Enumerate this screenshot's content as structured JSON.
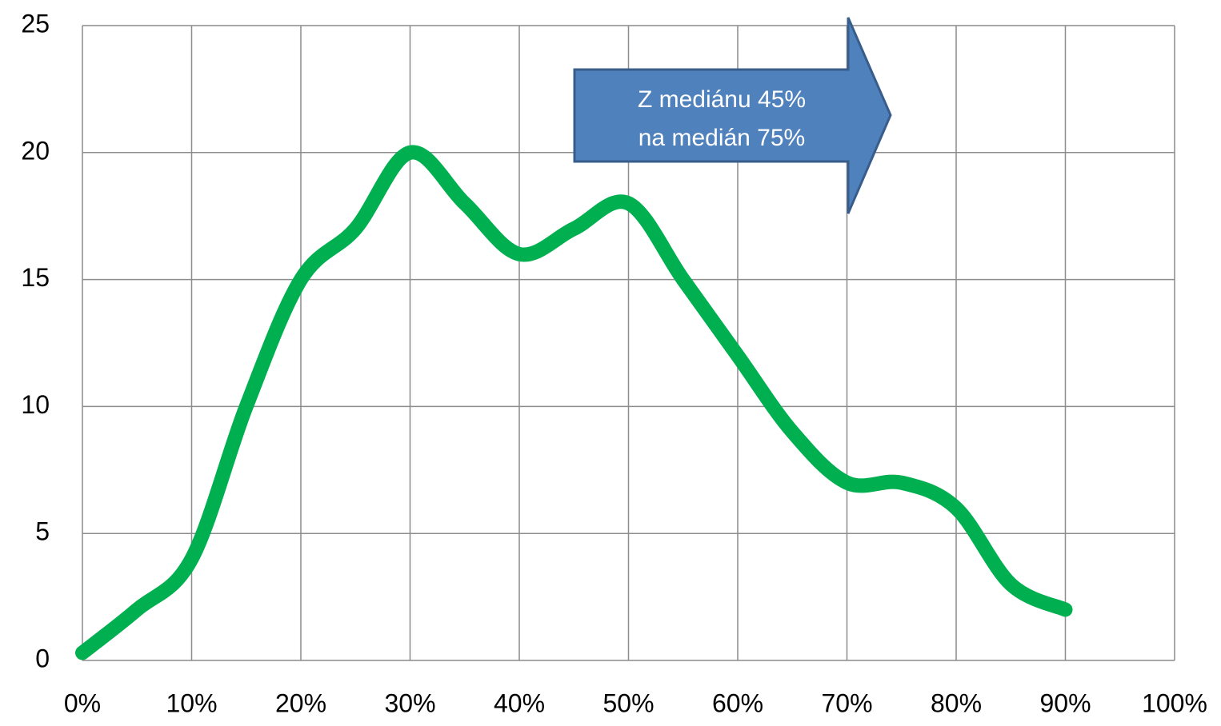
{
  "chart_data": {
    "type": "line",
    "x": [
      0,
      5,
      10,
      15,
      20,
      25,
      30,
      35,
      40,
      45,
      50,
      55,
      60,
      65,
      70,
      75,
      80,
      85,
      90
    ],
    "series": [
      {
        "color": "#00b050",
        "values": [
          0.3,
          2,
          4,
          10,
          15,
          17,
          20,
          18,
          16,
          17,
          18,
          15,
          12,
          9,
          7,
          7,
          6,
          3,
          2
        ]
      }
    ],
    "xlim": [
      0,
      100
    ],
    "xticks": [
      {
        "value": 0,
        "label": "0%"
      },
      {
        "value": 10,
        "label": "10%"
      },
      {
        "value": 20,
        "label": "20%"
      },
      {
        "value": 30,
        "label": "30%"
      },
      {
        "value": 40,
        "label": "40%"
      },
      {
        "value": 50,
        "label": "50%"
      },
      {
        "value": 60,
        "label": "60%"
      },
      {
        "value": 70,
        "label": "70%"
      },
      {
        "value": 80,
        "label": "80%"
      },
      {
        "value": 90,
        "label": "90%"
      },
      {
        "value": 100,
        "label": "100%"
      }
    ],
    "ylim": [
      0,
      25
    ],
    "yticks": [
      0,
      5,
      10,
      15,
      20,
      25
    ],
    "grid": true,
    "annotation": [
      "Z mediánu 45%",
      "na medián 75%"
    ]
  }
}
